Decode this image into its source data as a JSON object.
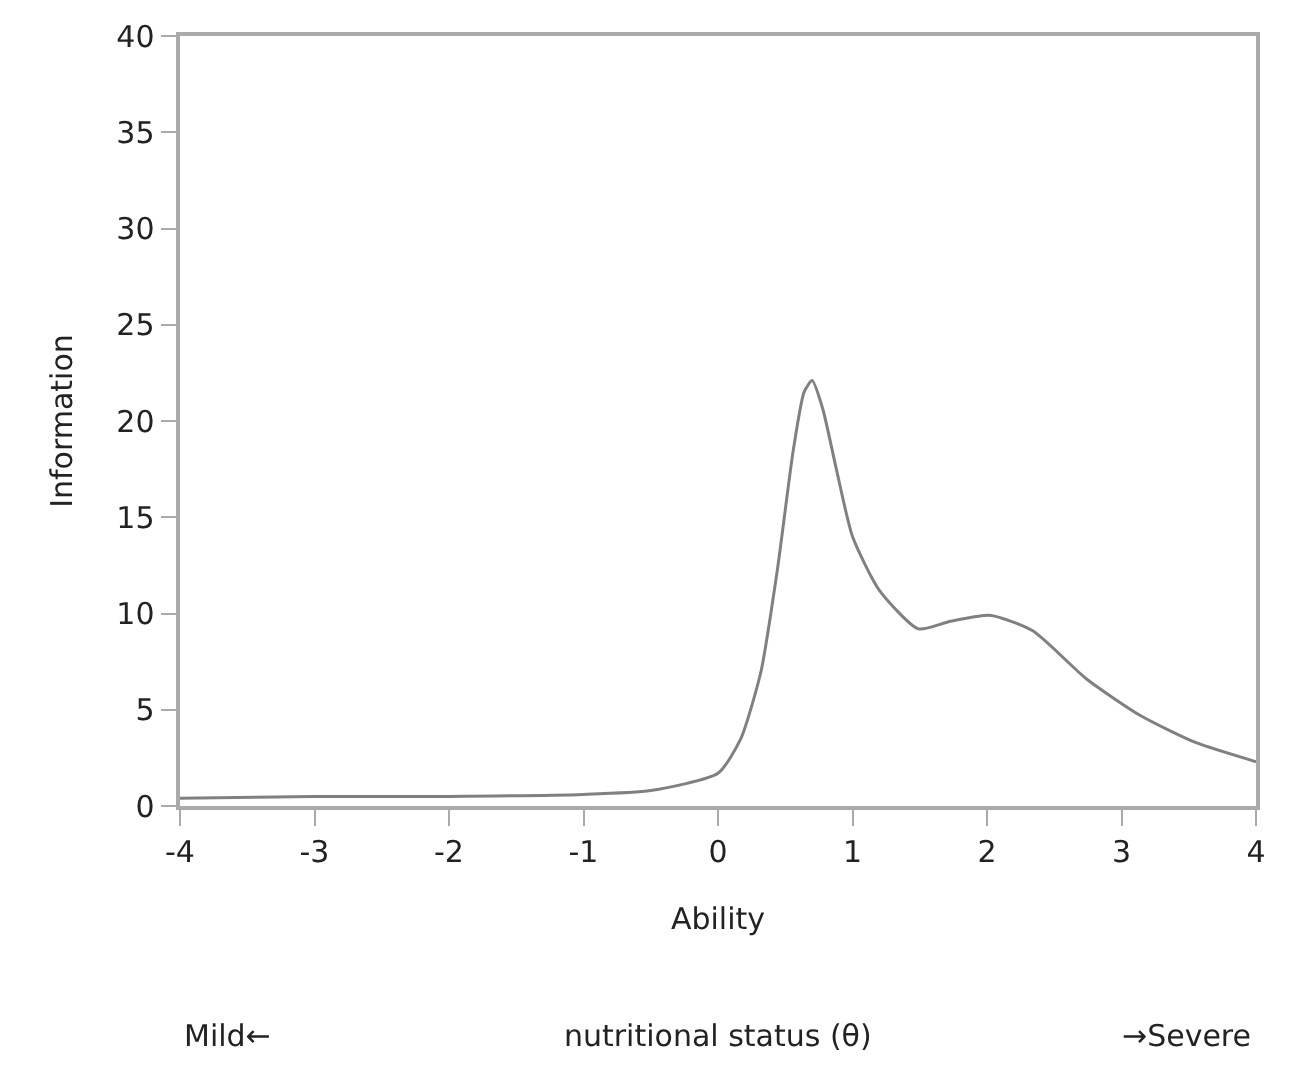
{
  "chart_data": {
    "type": "line",
    "xlabel": "Ability",
    "ylabel": "Information",
    "annotations": [
      "Mild←",
      "nutritional status (θ)",
      "→Severe"
    ],
    "series": [
      {
        "color": "#808080",
        "x": [
          -4,
          -3,
          -2,
          -1,
          -0.5,
          0,
          0.17,
          0.32,
          0.44,
          0.56,
          0.64,
          0.7,
          0.78,
          0.88,
          1,
          1.2,
          1.49,
          1.73,
          2.03,
          2.34,
          2.74,
          3.14,
          3.55,
          4
        ],
        "values": [
          0.4,
          0.5,
          0.5,
          0.6,
          0.8,
          1.7,
          3.5,
          7,
          12.2,
          18.5,
          21.5,
          22.1,
          20.6,
          17.5,
          14,
          11.2,
          9.2,
          9.6,
          9.9,
          9.1,
          6.6,
          4.7,
          3.3,
          2.3
        ]
      }
    ],
    "xlim": [
      -4,
      4
    ],
    "xticks": [
      -4,
      -3,
      -2,
      -1,
      0,
      1,
      2,
      3,
      4
    ],
    "ylim": [
      0,
      40
    ],
    "yticks": [
      0,
      5,
      10,
      15,
      20,
      25,
      30,
      35,
      40
    ],
    "grid": false,
    "marker": "none",
    "line_style": "solid"
  }
}
